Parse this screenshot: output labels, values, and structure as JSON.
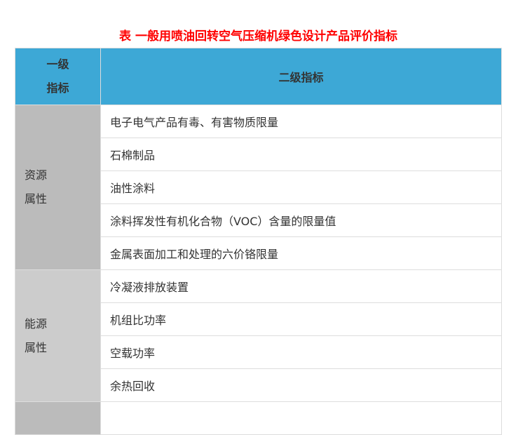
{
  "title": "表  一般用喷油回转空气压缩机绿色设计产品评价指标",
  "table": {
    "headers": {
      "level1_line1": "一级",
      "level1_line2": "指标",
      "level2": "二级指标"
    },
    "groups": [
      {
        "label_line1": "资源",
        "label_line2": "属性",
        "items": [
          "电子电气产品有毒、有害物质限量",
          "石棉制品",
          "油性涂料",
          "涂料挥发性有机化合物（VOC）含量的限量值",
          "金属表面加工和处理的六价铬限量"
        ]
      },
      {
        "label_line1": "能源",
        "label_line2": "属性",
        "items": [
          "冷凝液排放装置",
          "机组比功率",
          "空载功率",
          "余热回收"
        ]
      }
    ],
    "colors": {
      "header": "#3da8d6",
      "group1": "#bbbbbb",
      "group2": "#cccccc",
      "title": "#ff0000"
    }
  }
}
